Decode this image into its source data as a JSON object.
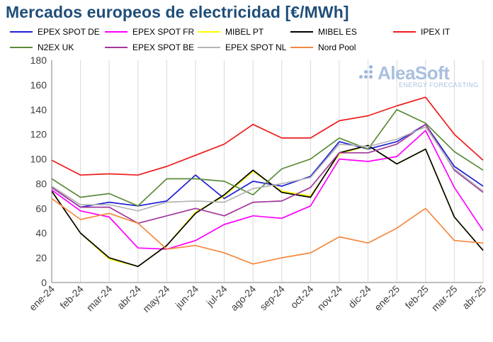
{
  "title": "Mercados europeos de electricidad [€/MWh]",
  "logo": {
    "name": "AleaSoft",
    "tagline": "ENERGY FORECASTING"
  },
  "chart_data": {
    "type": "line",
    "title": "Mercados europeos de electricidad [€/MWh]",
    "xlabel": "",
    "ylabel": "",
    "ylim": [
      0,
      180
    ],
    "yticks": [
      0,
      20,
      40,
      60,
      80,
      100,
      120,
      140,
      160,
      180
    ],
    "grid": "vertical",
    "legend_position": "top",
    "categories": [
      "ene-24",
      "feb-24",
      "mar-24",
      "abr-24",
      "may-24",
      "jun-24",
      "jul-24",
      "ago-24",
      "sep-24",
      "oct-24",
      "nov-24",
      "dic-24",
      "ene-25",
      "feb-25",
      "mar-25",
      "abr-25"
    ],
    "series": [
      {
        "name": "EPEX SPOT DE",
        "color": "#1f1fd6",
        "values": [
          77,
          61,
          65,
          62,
          66,
          87,
          68,
          82,
          78,
          86,
          114,
          108,
          114,
          128,
          94,
          78
        ]
      },
      {
        "name": "EPEX SPOT FR",
        "color": "#ff00ff",
        "values": [
          75,
          58,
          53,
          28,
          27,
          34,
          47,
          54,
          52,
          62,
          100,
          98,
          102,
          123,
          77,
          42
        ]
      },
      {
        "name": "MIBEL PT",
        "color": "#ffff00",
        "values": [
          74,
          40,
          19,
          13,
          30,
          57,
          70,
          90,
          74,
          70,
          104,
          111,
          96,
          108,
          53,
          26
        ]
      },
      {
        "name": "MIBEL ES",
        "color": "#000000",
        "values": [
          74,
          40,
          20,
          13,
          30,
          56,
          71,
          91,
          73,
          69,
          105,
          111,
          96,
          108,
          53,
          26
        ]
      },
      {
        "name": "IPEX IT",
        "color": "#ee1c1c",
        "values": [
          99,
          87,
          88,
          87,
          94,
          103,
          112,
          128,
          117,
          117,
          131,
          135,
          143,
          150,
          120,
          99
        ]
      },
      {
        "name": "N2EX UK",
        "color": "#5b8c3a",
        "values": [
          84,
          69,
          72,
          62,
          84,
          84,
          82,
          71,
          92,
          100,
          117,
          108,
          140,
          129,
          106,
          91
        ]
      },
      {
        "name": "EPEX SPOT BE",
        "color": "#a0379c",
        "values": [
          77,
          61,
          61,
          48,
          54,
          60,
          54,
          65,
          66,
          77,
          105,
          105,
          112,
          128,
          91,
          73
        ]
      },
      {
        "name": "EPEX SPOT NL",
        "color": "#b5b5b5",
        "values": [
          78,
          63,
          63,
          58,
          65,
          66,
          65,
          76,
          80,
          85,
          112,
          110,
          116,
          126,
          92,
          74
        ]
      },
      {
        "name": "Nord Pool",
        "color": "#f5893f",
        "values": [
          68,
          51,
          56,
          48,
          27,
          30,
          24,
          15,
          20,
          24,
          37,
          32,
          44,
          60,
          34,
          32
        ]
      }
    ]
  }
}
